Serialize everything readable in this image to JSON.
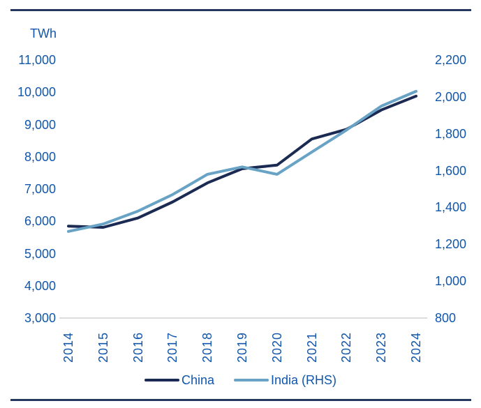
{
  "colors": {
    "label_text": "#1156ab",
    "china_line": "#1b2a52",
    "india_line": "#68a3c6",
    "border_rule": "#26375f",
    "axis_baseline": "#c6c6c6"
  },
  "chart_data": {
    "type": "line",
    "title": "",
    "x": [
      "2014",
      "2015",
      "2016",
      "2017",
      "2018",
      "2019",
      "2020",
      "2021",
      "2022",
      "2023",
      "2024"
    ],
    "series": [
      {
        "name": "China",
        "axis": "left",
        "color": "#1b2a52",
        "values": [
          5850,
          5810,
          6100,
          6600,
          7190,
          7630,
          7740,
          8550,
          8850,
          9450,
          9880
        ]
      },
      {
        "name": "India (RHS)",
        "axis": "right",
        "color": "#68a3c6",
        "values": [
          1270,
          1310,
          1380,
          1470,
          1580,
          1620,
          1580,
          1700,
          1820,
          1950,
          2030
        ]
      }
    ],
    "left_axis": {
      "label": "TWh",
      "min": 3000,
      "max": 11000,
      "tick_labels": [
        "11,000",
        "10,000",
        "9,000",
        "8,000",
        "7,000",
        "6,000",
        "5,000",
        "4,000",
        "3,000"
      ]
    },
    "right_axis": {
      "min": 800,
      "max": 2200,
      "tick_labels": [
        "2,200",
        "2,000",
        "1,800",
        "1,600",
        "1,400",
        "1,200",
        "1,000",
        "800"
      ]
    },
    "legend": [
      {
        "label": "China"
      },
      {
        "label": "India (RHS)"
      }
    ],
    "layout_hints": {
      "grid": "off",
      "legend_position": "bottom-center",
      "x_tick_rotation": 90
    }
  }
}
